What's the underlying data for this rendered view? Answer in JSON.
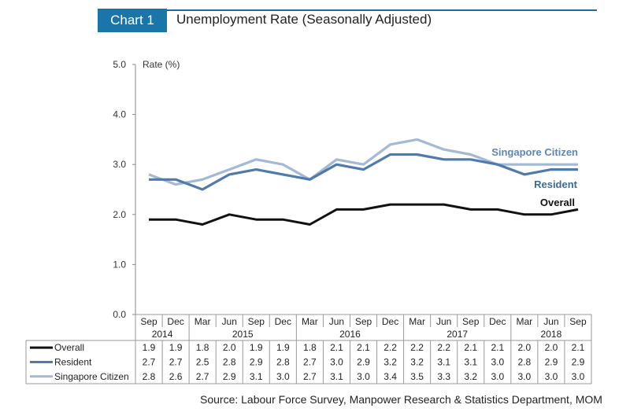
{
  "header": {
    "tag": "Chart 1",
    "title": "Unemployment Rate (Seasonally Adjusted)"
  },
  "source": "Source: Labour Force Survey, Manpower Research & Statistics Department, MOM",
  "colors": {
    "tag_bg": "#1a76a8",
    "overall": "#111111",
    "resident": "#4f7aab",
    "citizen": "#a4b9d4"
  },
  "chart_data": {
    "type": "line",
    "title": "Unemployment Rate (Seasonally Adjusted)",
    "ylabel": "Rate (%)",
    "xlabel": "",
    "ylim": [
      0,
      5
    ],
    "yticks": [
      "0.0",
      "1.0",
      "2.0",
      "3.0",
      "4.0",
      "5.0"
    ],
    "grid": false,
    "categories": [
      "Sep",
      "Dec",
      "Mar",
      "Jun",
      "Sep",
      "Dec",
      "Mar",
      "Jun",
      "Sep",
      "Dec",
      "Mar",
      "Jun",
      "Sep",
      "Dec",
      "Mar",
      "Jun",
      "Sep"
    ],
    "years": [
      {
        "label": "2014",
        "span": 2
      },
      {
        "label": "2015",
        "span": 4
      },
      {
        "label": "2016",
        "span": 4
      },
      {
        "label": "2017",
        "span": 4
      },
      {
        "label": "2018",
        "span": 3
      }
    ],
    "series": [
      {
        "name": "Overall",
        "key": "overall",
        "values": [
          1.9,
          1.9,
          1.8,
          2.0,
          1.9,
          1.9,
          1.8,
          2.1,
          2.1,
          2.2,
          2.2,
          2.2,
          2.1,
          2.1,
          2.0,
          2.0,
          2.1
        ]
      },
      {
        "name": "Resident",
        "key": "resident",
        "values": [
          2.7,
          2.7,
          2.5,
          2.8,
          2.9,
          2.8,
          2.7,
          3.0,
          2.9,
          3.2,
          3.2,
          3.1,
          3.1,
          3.0,
          2.8,
          2.9,
          2.9
        ]
      },
      {
        "name": "Singapore Citizen",
        "key": "citizen",
        "values": [
          2.8,
          2.6,
          2.7,
          2.9,
          3.1,
          3.0,
          2.7,
          3.1,
          3.0,
          3.4,
          3.5,
          3.3,
          3.2,
          3.0,
          3.0,
          3.0,
          3.0
        ]
      }
    ],
    "annotations": [
      "Singapore Citizen",
      "Resident",
      "Overall"
    ]
  }
}
